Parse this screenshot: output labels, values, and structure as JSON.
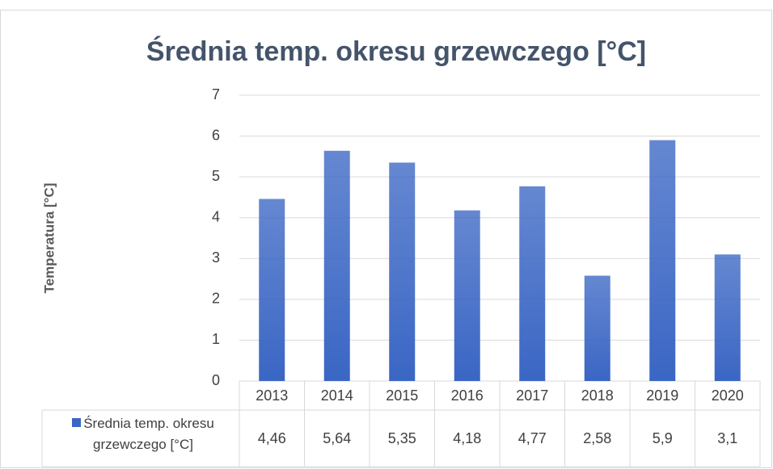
{
  "chart_data": {
    "type": "bar",
    "title": "Średnia temp. okresu grzewczego [°C]",
    "y_label": "Temperatura [°C]",
    "categories": [
      "2013",
      "2014",
      "2015",
      "2016",
      "2017",
      "2018",
      "2019",
      "2020"
    ],
    "series": [
      {
        "name": "Średnia temp. okresu grzewczego [°C]",
        "color": "#3a66c4",
        "values": [
          4.46,
          5.64,
          5.35,
          4.18,
          4.77,
          2.58,
          5.9,
          3.1
        ],
        "value_labels": [
          "4,46",
          "5,64",
          "5,35",
          "4,18",
          "4,77",
          "2,58",
          "5,9",
          "3,1"
        ]
      }
    ],
    "ylim": [
      0,
      7
    ],
    "yticks": [
      0,
      1,
      2,
      3,
      4,
      5,
      6,
      7
    ],
    "grid": true
  }
}
